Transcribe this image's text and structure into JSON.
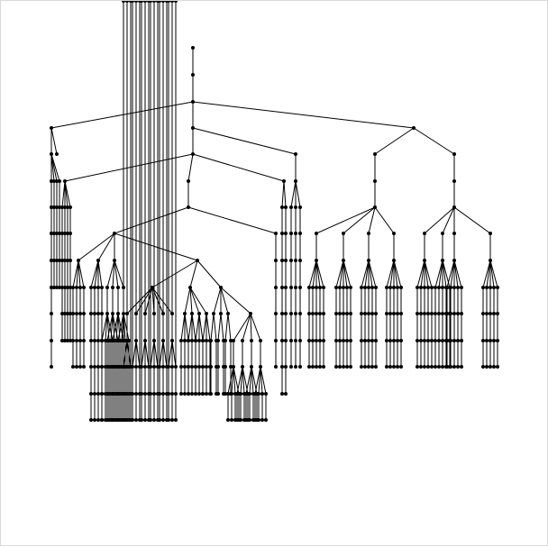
{
  "diagram": {
    "type": "tree",
    "colors": {
      "edge": "#000000",
      "node": "#000000",
      "background": "#ffffff"
    }
  }
}
